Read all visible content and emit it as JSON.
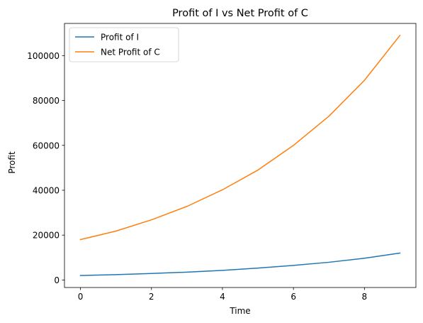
{
  "chart_data": {
    "type": "line",
    "title": "Profit of I vs Net Profit of C",
    "xlabel": "Time",
    "ylabel": "Profit",
    "x": [
      0,
      1,
      2,
      3,
      4,
      5,
      6,
      7,
      8,
      9
    ],
    "series": [
      {
        "name": "Profit of I",
        "color": "#1f77b4",
        "values": [
          2000,
          2400,
          2900,
          3500,
          4300,
          5300,
          6500,
          7900,
          9700,
          12000
        ]
      },
      {
        "name": "Net Profit of C",
        "color": "#ff7f0e",
        "values": [
          18000,
          21800,
          26800,
          32800,
          40200,
          49000,
          60000,
          73000,
          89000,
          109000
        ]
      }
    ],
    "xlim": [
      -0.45,
      9.45
    ],
    "ylim": [
      -3350,
      114350
    ],
    "xticks": [
      0,
      2,
      4,
      6,
      8
    ],
    "yticks": [
      0,
      20000,
      40000,
      60000,
      80000,
      100000
    ],
    "grid": false,
    "legend_position": "upper left"
  }
}
